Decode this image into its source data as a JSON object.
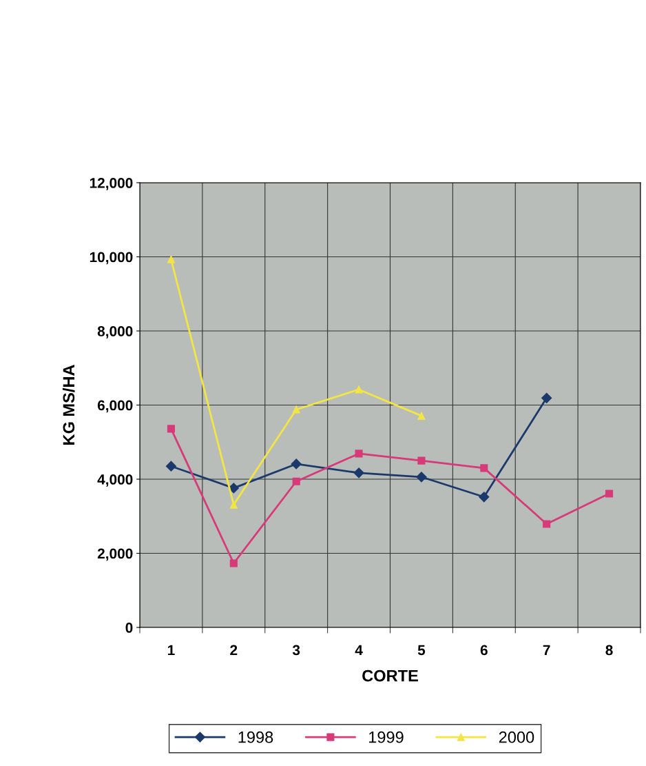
{
  "chart_data": {
    "type": "line",
    "xlabel": "CORTE",
    "ylabel": "KG MS/HA",
    "categories": [
      "1",
      "2",
      "3",
      "4",
      "5",
      "6",
      "7",
      "8"
    ],
    "series": [
      {
        "name": "1998",
        "color": "#1b3a6b",
        "marker": "diamond",
        "values": [
          4350,
          3760,
          4410,
          4170,
          4060,
          3520,
          6190,
          null
        ]
      },
      {
        "name": "1999",
        "color": "#d63a78",
        "marker": "square",
        "values": [
          5360,
          1730,
          3940,
          4690,
          4500,
          4300,
          2790,
          3610
        ]
      },
      {
        "name": "2000",
        "color": "#f2e544",
        "marker": "triangle",
        "values": [
          9930,
          3310,
          5880,
          6420,
          5710,
          null,
          null,
          null
        ]
      }
    ],
    "ylim": [
      0,
      12000
    ],
    "yticks": [
      {
        "value": 0,
        "label": "0"
      },
      {
        "value": 2000,
        "label": "2,000"
      },
      {
        "value": 4000,
        "label": "4,000"
      },
      {
        "value": 6000,
        "label": "6,000"
      },
      {
        "value": 8000,
        "label": "8,000"
      },
      {
        "value": 10000,
        "label": "10,000"
      },
      {
        "value": 12000,
        "label": "12,000"
      }
    ],
    "grid": true,
    "legend": "bottom"
  }
}
